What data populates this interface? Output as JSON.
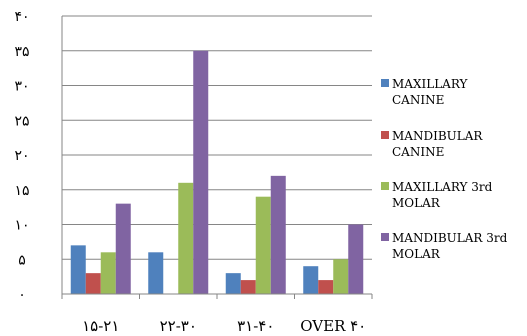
{
  "chart_data": {
    "type": "bar",
    "title": "",
    "xlabel": "",
    "ylabel": "",
    "categories": [
      "۱۵-۲۱",
      "۲۲-۳۰",
      "۳۱-۴۰",
      "OVER ۴۰"
    ],
    "y_tick_labels": [
      "۰",
      "۵",
      "۱۰",
      "۱۵",
      "۲۰",
      "۲۵",
      "۳۰",
      "۳۵",
      "۴۰"
    ],
    "y_tick_values": [
      0,
      5,
      10,
      15,
      20,
      25,
      30,
      35,
      40
    ],
    "ylim": [
      0,
      40
    ],
    "grid": true,
    "legend_position": "right",
    "series": [
      {
        "name": "MAXILLARY CANINE",
        "name_lines": [
          "MAXILLARY",
          "CANINE"
        ],
        "color": "#4F81BD",
        "values": [
          7,
          6,
          3,
          4
        ]
      },
      {
        "name": "MANDIBULAR CANINE",
        "name_lines": [
          "MANDIBULAR",
          "CANINE"
        ],
        "color": "#C0504D",
        "values": [
          3,
          0,
          2,
          2
        ]
      },
      {
        "name": "MAXILLARY 3rd MOLAR",
        "name_lines": [
          "MAXILLARY 3rd",
          "MOLAR"
        ],
        "color": "#9BBB59",
        "values": [
          6,
          16,
          14,
          5
        ]
      },
      {
        "name": "MANDIBULAR 3rd MOLAR",
        "name_lines": [
          "MANDIBULAR 3rd",
          "MOLAR"
        ],
        "color": "#8064A2",
        "values": [
          13,
          35,
          17,
          10
        ]
      }
    ]
  }
}
